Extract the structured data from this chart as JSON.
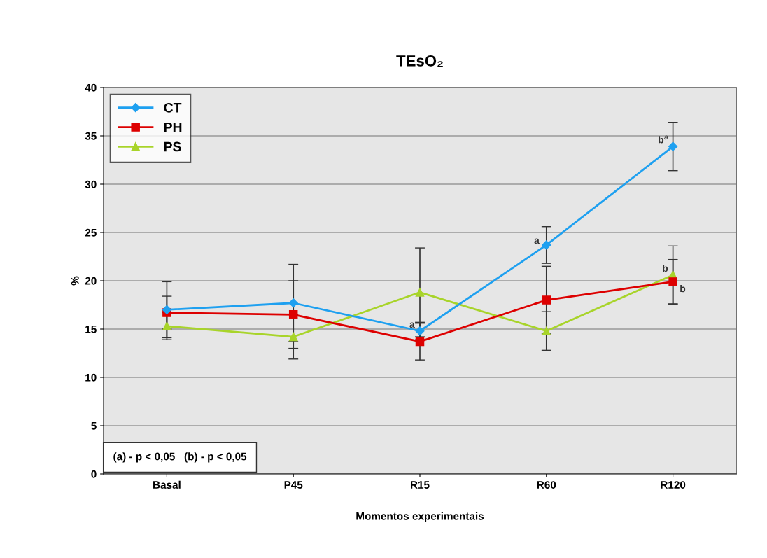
{
  "chart_data": {
    "type": "line",
    "title": "TEsO₂",
    "xlabel": "Momentos experimentais",
    "ylabel": "%",
    "categories": [
      "Basal",
      "P45",
      "R15",
      "R60",
      "R120"
    ],
    "series": [
      {
        "name": "CT",
        "color": "#1ea0f0",
        "marker": "diamond",
        "values": [
          17.0,
          17.7,
          14.8,
          23.7,
          33.9
        ],
        "errors": [
          2.9,
          4.0,
          0.9,
          1.9,
          2.5
        ]
      },
      {
        "name": "PH",
        "color": "#dd0000",
        "marker": "square",
        "values": [
          16.7,
          16.5,
          13.7,
          18.0,
          19.9
        ],
        "errors": [
          1.7,
          3.5,
          1.9,
          3.5,
          2.3
        ]
      },
      {
        "name": "PS",
        "color": "#a8d42a",
        "marker": "triangle",
        "values": [
          15.3,
          14.2,
          18.8,
          14.8,
          20.6
        ],
        "errors": [
          1.4,
          2.3,
          4.6,
          2.0,
          3.0
        ]
      }
    ],
    "ylim": [
      0,
      40
    ],
    "yticks": [
      0,
      5,
      10,
      15,
      20,
      25,
      30,
      35,
      40
    ],
    "grid": "y",
    "legend": "top left",
    "line_style": "solid",
    "annotations": [
      {
        "text": "a",
        "x": "R15",
        "y": 14.8
      },
      {
        "text": "a",
        "x": "R60",
        "y": 23.7
      },
      {
        "text": "b$^{a}$",
        "x": "R120",
        "y": 33.9
      },
      {
        "text": "b",
        "x": "R120",
        "y": 20.6
      },
      {
        "text": "b",
        "x": "R120",
        "y": 19.9
      },
      "(a) - p < 0,05   (b) - p < 0,05"
    ]
  }
}
